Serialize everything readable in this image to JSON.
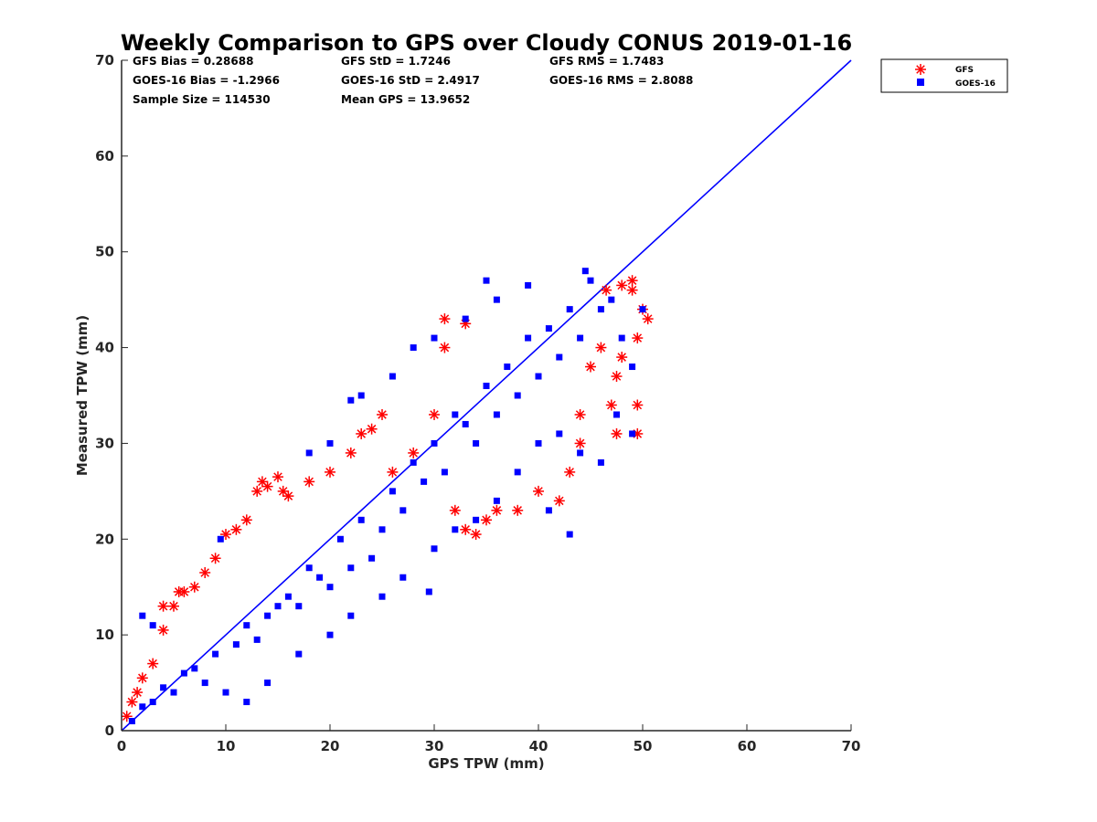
{
  "chart_data": {
    "type": "scatter",
    "title": "Weekly Comparison to GPS over Cloudy CONUS 2019-01-16",
    "xlabel": "GPS TPW (mm)",
    "ylabel": "Measured TPW (mm)",
    "xlim": [
      0,
      70
    ],
    "ylim": [
      0,
      70
    ],
    "xticks": [
      "0",
      "10",
      "20",
      "30",
      "40",
      "50",
      "60",
      "70"
    ],
    "yticks": [
      "0",
      "10",
      "20",
      "30",
      "40",
      "50",
      "60",
      "70"
    ],
    "grid": false,
    "legend_position": "outside top-right",
    "stats": [
      "GFS Bias = 0.28688",
      "GFS StD = 1.7246",
      "GFS RMS = 1.7483",
      "GOES-16 Bias = -1.2966",
      "GOES-16 StD = 2.4917",
      "GOES-16 RMS = 2.8088",
      "Sample Size = 114530",
      "Mean GPS = 13.9652"
    ],
    "reference_line": {
      "x": [
        0,
        70
      ],
      "y": [
        0,
        70
      ],
      "color": "#0000ff"
    },
    "series": [
      {
        "name": "GFS",
        "marker": "asterisk",
        "color": "#ff0000",
        "points": [
          [
            0.5,
            1.5
          ],
          [
            1,
            3
          ],
          [
            1.5,
            4
          ],
          [
            2,
            5.5
          ],
          [
            3,
            7
          ],
          [
            4,
            10.5
          ],
          [
            4,
            13
          ],
          [
            5,
            13
          ],
          [
            5.5,
            14.5
          ],
          [
            6,
            14.5
          ],
          [
            7,
            15
          ],
          [
            8,
            16.5
          ],
          [
            9,
            18
          ],
          [
            10,
            20.5
          ],
          [
            11,
            21
          ],
          [
            12,
            22
          ],
          [
            13,
            25
          ],
          [
            13.5,
            26
          ],
          [
            14,
            25.5
          ],
          [
            15,
            26.5
          ],
          [
            15.5,
            25
          ],
          [
            16,
            24.5
          ],
          [
            18,
            26
          ],
          [
            20,
            27
          ],
          [
            22,
            29
          ],
          [
            23,
            31
          ],
          [
            24,
            31.5
          ],
          [
            25,
            33
          ],
          [
            26,
            27
          ],
          [
            28,
            29
          ],
          [
            30,
            33
          ],
          [
            31,
            40
          ],
          [
            31,
            43
          ],
          [
            33,
            42.5
          ],
          [
            32,
            23
          ],
          [
            33,
            21
          ],
          [
            34,
            20.5
          ],
          [
            35,
            22
          ],
          [
            36,
            23
          ],
          [
            38,
            23
          ],
          [
            40,
            25
          ],
          [
            42,
            24
          ],
          [
            43,
            27
          ],
          [
            44,
            30
          ],
          [
            44,
            33
          ],
          [
            45,
            38
          ],
          [
            46,
            40
          ],
          [
            46.5,
            46
          ],
          [
            47,
            34
          ],
          [
            47.5,
            37
          ],
          [
            47.5,
            31
          ],
          [
            48,
            39
          ],
          [
            48,
            46.5
          ],
          [
            49,
            47
          ],
          [
            49.5,
            41
          ],
          [
            49.5,
            34
          ],
          [
            49.5,
            31
          ],
          [
            50,
            44
          ],
          [
            50.5,
            43
          ],
          [
            49,
            46
          ]
        ]
      },
      {
        "name": "GOES-16",
        "marker": "square",
        "color": "#0000ff",
        "points": [
          [
            1,
            1
          ],
          [
            2,
            2.5
          ],
          [
            3,
            3
          ],
          [
            4,
            4.5
          ],
          [
            5,
            4
          ],
          [
            6,
            6
          ],
          [
            7,
            6.5
          ],
          [
            8,
            5
          ],
          [
            9,
            8
          ],
          [
            10,
            4
          ],
          [
            11,
            9
          ],
          [
            12,
            11
          ],
          [
            13,
            9.5
          ],
          [
            14,
            12
          ],
          [
            15,
            13
          ],
          [
            16,
            14
          ],
          [
            17,
            13
          ],
          [
            18,
            17
          ],
          [
            19,
            16
          ],
          [
            20,
            15
          ],
          [
            21,
            20
          ],
          [
            22,
            17
          ],
          [
            23,
            22
          ],
          [
            24,
            18
          ],
          [
            25,
            21
          ],
          [
            26,
            25
          ],
          [
            27,
            23
          ],
          [
            28,
            28
          ],
          [
            29,
            26
          ],
          [
            30,
            30
          ],
          [
            31,
            27
          ],
          [
            32,
            33
          ],
          [
            33,
            32
          ],
          [
            34,
            30
          ],
          [
            35,
            36
          ],
          [
            36,
            33
          ],
          [
            37,
            38
          ],
          [
            38,
            35
          ],
          [
            39,
            41
          ],
          [
            40,
            37
          ],
          [
            41,
            42
          ],
          [
            42,
            39
          ],
          [
            43,
            44
          ],
          [
            44,
            41
          ],
          [
            45,
            47
          ],
          [
            46,
            44
          ],
          [
            47,
            45
          ],
          [
            48,
            41
          ],
          [
            49,
            38
          ],
          [
            50,
            44
          ],
          [
            9.5,
            20
          ],
          [
            2,
            12
          ],
          [
            3,
            11
          ],
          [
            12,
            3
          ],
          [
            14,
            5
          ],
          [
            17,
            8
          ],
          [
            20,
            10
          ],
          [
            22,
            12
          ],
          [
            25,
            14
          ],
          [
            27,
            16
          ],
          [
            30,
            19
          ],
          [
            32,
            21
          ],
          [
            34,
            22
          ],
          [
            36,
            24
          ],
          [
            38,
            27
          ],
          [
            40,
            30
          ],
          [
            42,
            31
          ],
          [
            44,
            29
          ],
          [
            46,
            28
          ],
          [
            47.5,
            33
          ],
          [
            49,
            31
          ],
          [
            35,
            47
          ],
          [
            39,
            46.5
          ],
          [
            44.5,
            48
          ],
          [
            43,
            20.5
          ],
          [
            41,
            23
          ],
          [
            22,
            34.5
          ],
          [
            20,
            30
          ],
          [
            18,
            29
          ],
          [
            23,
            35
          ],
          [
            26,
            37
          ],
          [
            28,
            40
          ],
          [
            30,
            41
          ],
          [
            33,
            43
          ],
          [
            36,
            45
          ],
          [
            29.5,
            14.5
          ]
        ]
      }
    ]
  }
}
